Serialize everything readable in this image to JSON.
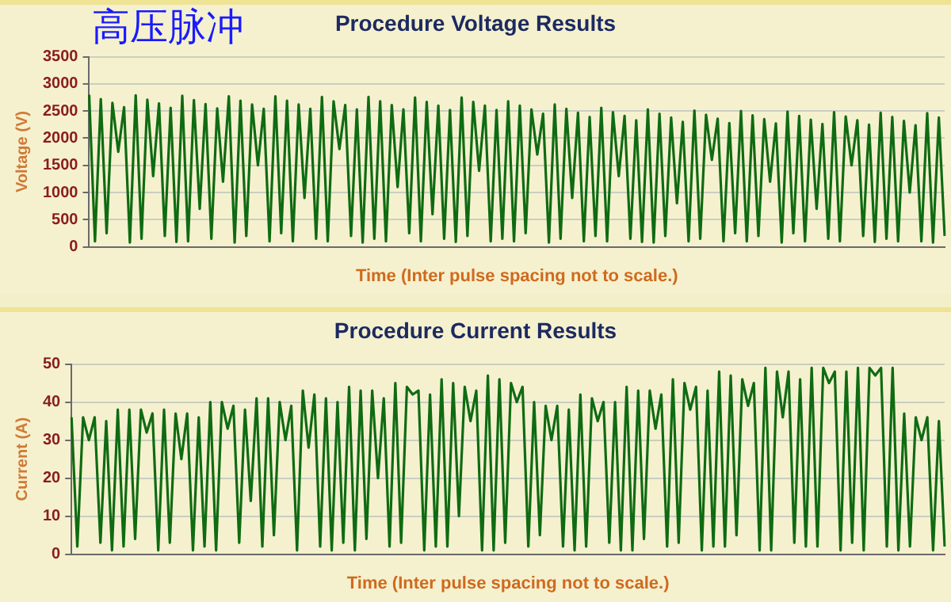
{
  "chart_data": [
    {
      "type": "line",
      "title": "Procedure Voltage Results",
      "xlabel": "Time (Inter pulse spacing not to scale.)",
      "ylabel": "Voltage (V)",
      "annotations": [
        "高压脉冲"
      ],
      "grid": "y",
      "marker": "none",
      "ylim": [
        0,
        3500
      ],
      "yticks": [
        0,
        500,
        1000,
        1500,
        2000,
        2500,
        3000,
        3500
      ],
      "categories": [
        null,
        null,
        null,
        null,
        null,
        null,
        null,
        null,
        null,
        null,
        null,
        null,
        null,
        null,
        null,
        null,
        null,
        null,
        null,
        null,
        null,
        null,
        null,
        null,
        null,
        null,
        null,
        null,
        null,
        null,
        null,
        null,
        null,
        null,
        null,
        null,
        null,
        null,
        null,
        null,
        null,
        null,
        null,
        null,
        null,
        null,
        null,
        null,
        null,
        null,
        null,
        null,
        null,
        null,
        null,
        null,
        null,
        null,
        null,
        null,
        null,
        null,
        null,
        null,
        null,
        null,
        null,
        null,
        null,
        null,
        null,
        null,
        null,
        null,
        null,
        null,
        null,
        null,
        null,
        null,
        null,
        null,
        null,
        null,
        null,
        null,
        null,
        null,
        null,
        null,
        null,
        null,
        null,
        null,
        null,
        null,
        null,
        null,
        null,
        null,
        null,
        null,
        null,
        null,
        null,
        null,
        null,
        null,
        null,
        null,
        null,
        null,
        null,
        null,
        null,
        null,
        null,
        null,
        null,
        null,
        null,
        null,
        null,
        null,
        null,
        null,
        null,
        null,
        null,
        null,
        null,
        null,
        null,
        null,
        null,
        null,
        null,
        null,
        null,
        null,
        null,
        null,
        null,
        null,
        null,
        null,
        null,
        null
      ],
      "series": [
        {
          "color": "#0f6b12",
          "values": [
            2800,
            100,
            2720,
            250,
            2650,
            1750,
            2570,
            80,
            2790,
            150,
            2710,
            1300,
            2640,
            200,
            2560,
            90,
            2780,
            100,
            2700,
            700,
            2630,
            150,
            2550,
            1200,
            2770,
            80,
            2690,
            200,
            2620,
            1500,
            2540,
            100,
            2770,
            250,
            2690,
            100,
            2620,
            900,
            2540,
            150,
            2760,
            100,
            2680,
            1800,
            2610,
            200,
            2530,
            80,
            2760,
            150,
            2680,
            100,
            2610,
            1100,
            2530,
            250,
            2750,
            100,
            2670,
            600,
            2600,
            150,
            2520,
            90,
            2750,
            200,
            2670,
            1400,
            2600,
            100,
            2520,
            150,
            2680,
            100,
            2600,
            250,
            2530,
            1700,
            2450,
            80,
            2620,
            150,
            2540,
            900,
            2470,
            100,
            2390,
            200,
            2560,
            100,
            2480,
            1300,
            2410,
            150,
            2330,
            90,
            2530,
            80,
            2450,
            200,
            2380,
            800,
            2300,
            100,
            2510,
            150,
            2430,
            1600,
            2360,
            100,
            2280,
            250,
            2500,
            100,
            2420,
            200,
            2350,
            1200,
            2270,
            80,
            2490,
            250,
            2410,
            100,
            2340,
            700,
            2260,
            150,
            2480,
            100,
            2400,
            1500,
            2330,
            200,
            2250,
            90,
            2470,
            150,
            2390,
            100,
            2320,
            1000,
            2240,
            100,
            2460,
            80,
            2380,
            200
          ]
        }
      ]
    },
    {
      "type": "line",
      "title": "Procedure Current Results",
      "xlabel": "Time (Inter pulse spacing not to scale.)",
      "ylabel": "Current (A)",
      "grid": "y",
      "marker": "none",
      "ylim": [
        0,
        50
      ],
      "yticks": [
        0,
        10,
        20,
        30,
        40,
        50
      ],
      "categories": [
        null,
        null,
        null,
        null,
        null,
        null,
        null,
        null,
        null,
        null,
        null,
        null,
        null,
        null,
        null,
        null,
        null,
        null,
        null,
        null,
        null,
        null,
        null,
        null,
        null,
        null,
        null,
        null,
        null,
        null,
        null,
        null,
        null,
        null,
        null,
        null,
        null,
        null,
        null,
        null,
        null,
        null,
        null,
        null,
        null,
        null,
        null,
        null,
        null,
        null,
        null,
        null,
        null,
        null,
        null,
        null,
        null,
        null,
        null,
        null,
        null,
        null,
        null,
        null,
        null,
        null,
        null,
        null,
        null,
        null,
        null,
        null,
        null,
        null,
        null,
        null,
        null,
        null,
        null,
        null,
        null,
        null,
        null,
        null,
        null,
        null,
        null,
        null,
        null,
        null,
        null,
        null,
        null,
        null,
        null,
        null,
        null,
        null,
        null,
        null,
        null,
        null,
        null,
        null,
        null,
        null,
        null,
        null,
        null,
        null,
        null,
        null,
        null,
        null,
        null,
        null,
        null,
        null,
        null,
        null,
        null,
        null,
        null,
        null,
        null,
        null,
        null,
        null,
        null,
        null,
        null,
        null,
        null,
        null,
        null,
        null,
        null,
        null,
        null,
        null,
        null,
        null,
        null,
        null,
        null,
        null,
        null,
        null,
        null,
        null,
        null,
        null
      ],
      "series": [
        {
          "color": "#0f6b12",
          "values": [
            36,
            2,
            36,
            30,
            36,
            3,
            35,
            1,
            38,
            2,
            38,
            4,
            38,
            32,
            37,
            1,
            38,
            3,
            37,
            25,
            37,
            1,
            36,
            2,
            40,
            1,
            40,
            33,
            39,
            3,
            38,
            14,
            41,
            2,
            41,
            5,
            40,
            30,
            39,
            1,
            43,
            28,
            42,
            2,
            41,
            1,
            40,
            3,
            44,
            1,
            43,
            4,
            43,
            20,
            41,
            2,
            45,
            3,
            44,
            42,
            43,
            1,
            42,
            2,
            46,
            2,
            45,
            10,
            44,
            35,
            43,
            1,
            47,
            1,
            46,
            3,
            45,
            40,
            44,
            2,
            40,
            5,
            39,
            30,
            39,
            2,
            38,
            1,
            42,
            2,
            41,
            35,
            40,
            3,
            40,
            1,
            44,
            1,
            43,
            4,
            43,
            33,
            42,
            2,
            46,
            3,
            45,
            38,
            44,
            1,
            43,
            2,
            48,
            2,
            47,
            5,
            46,
            39,
            45,
            1,
            49,
            1,
            48,
            36,
            48,
            3,
            46,
            2,
            49,
            2,
            49,
            45,
            48,
            1,
            48,
            3,
            49,
            1,
            49,
            47,
            49,
            2,
            49,
            1,
            37,
            2,
            36,
            30,
            36,
            1,
            35,
            2
          ]
        }
      ]
    }
  ]
}
